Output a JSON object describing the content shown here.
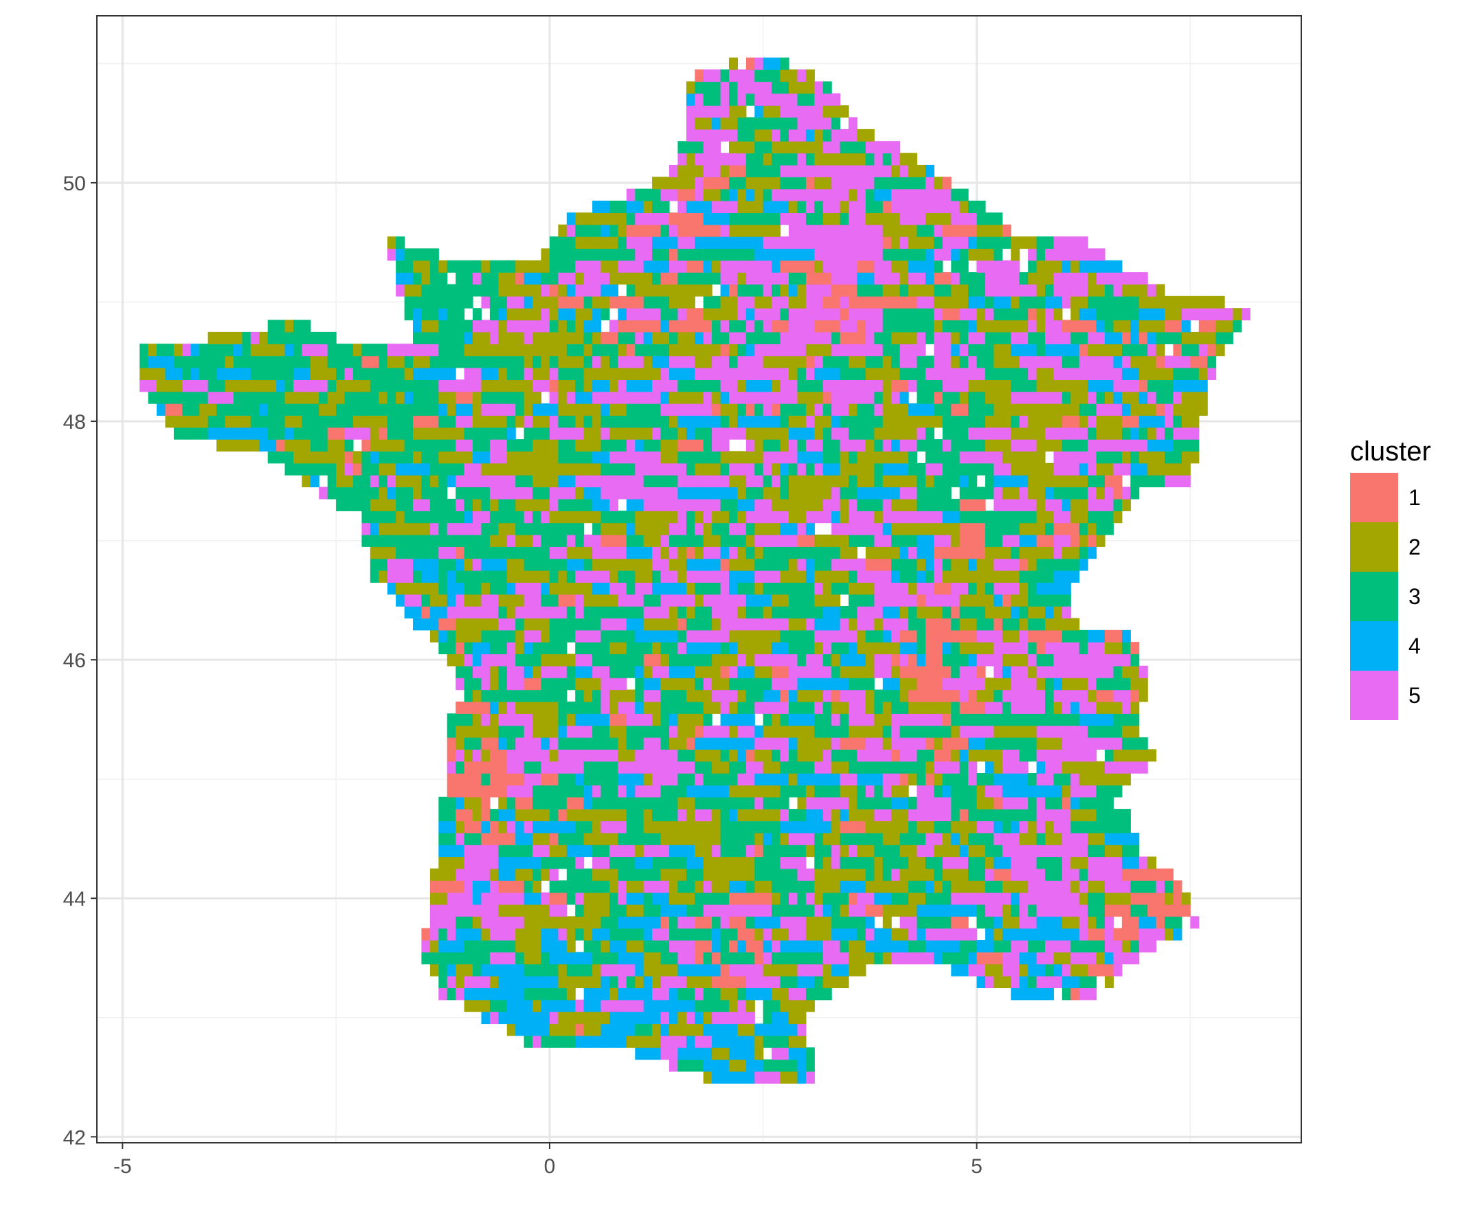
{
  "chart_data": {
    "type": "heatmap",
    "title": "",
    "xlabel": "",
    "ylabel": "",
    "xlim": [
      -5.3,
      8.8
    ],
    "ylim": [
      41.95,
      51.4
    ],
    "x_ticks": [
      -5,
      0,
      5
    ],
    "y_ticks": [
      42,
      44,
      46,
      48,
      50
    ],
    "x_tick_labels": [
      "-5",
      "0",
      "5"
    ],
    "y_tick_labels": [
      "42",
      "44",
      "46",
      "48",
      "50"
    ],
    "grid": true,
    "legend": {
      "title": "cluster",
      "placement": "right",
      "entries": [
        {
          "label": "1",
          "color": "#F8766D"
        },
        {
          "label": "2",
          "color": "#A3A500"
        },
        {
          "label": "3",
          "color": "#00BF7D"
        },
        {
          "label": "4",
          "color": "#00B0F6"
        },
        {
          "label": "5",
          "color": "#E76BF3"
        }
      ]
    },
    "cell_size_deg": 0.1,
    "region_outline": [
      [
        2.55,
        51.1
      ],
      [
        3.2,
        50.85
      ],
      [
        3.6,
        50.5
      ],
      [
        4.2,
        50.25
      ],
      [
        4.85,
        49.95
      ],
      [
        5.5,
        49.55
      ],
      [
        6.3,
        49.5
      ],
      [
        7.2,
        49.1
      ],
      [
        8.2,
        48.95
      ],
      [
        7.8,
        48.5
      ],
      [
        7.6,
        47.85
      ],
      [
        7.5,
        47.5
      ],
      [
        6.9,
        47.4
      ],
      [
        6.5,
        47.0
      ],
      [
        6.1,
        46.55
      ],
      [
        6.2,
        46.25
      ],
      [
        6.85,
        46.2
      ],
      [
        7.0,
        45.9
      ],
      [
        6.9,
        45.4
      ],
      [
        7.1,
        45.2
      ],
      [
        6.7,
        44.9
      ],
      [
        6.9,
        44.4
      ],
      [
        7.4,
        44.15
      ],
      [
        7.6,
        43.8
      ],
      [
        7.0,
        43.55
      ],
      [
        6.3,
        43.15
      ],
      [
        5.4,
        43.2
      ],
      [
        4.7,
        43.4
      ],
      [
        3.9,
        43.5
      ],
      [
        3.0,
        43.05
      ],
      [
        3.1,
        42.45
      ],
      [
        2.2,
        42.4
      ],
      [
        1.4,
        42.6
      ],
      [
        0.7,
        42.8
      ],
      [
        -0.3,
        42.8
      ],
      [
        -1.25,
        43.2
      ],
      [
        -1.5,
        43.5
      ],
      [
        -1.3,
        44.5
      ],
      [
        -1.2,
        45.3
      ],
      [
        -1.1,
        45.9
      ],
      [
        -1.55,
        46.3
      ],
      [
        -2.1,
        46.7
      ],
      [
        -2.2,
        47.2
      ],
      [
        -2.6,
        47.35
      ],
      [
        -3.4,
        47.75
      ],
      [
        -4.3,
        47.85
      ],
      [
        -4.75,
        48.3
      ],
      [
        -4.8,
        48.6
      ],
      [
        -4.0,
        48.7
      ],
      [
        -3.0,
        48.85
      ],
      [
        -2.2,
        48.6
      ],
      [
        -1.6,
        48.7
      ],
      [
        -1.95,
        49.55
      ],
      [
        -1.3,
        49.4
      ],
      [
        -0.2,
        49.3
      ],
      [
        0.2,
        49.7
      ],
      [
        1.35,
        50.05
      ],
      [
        1.6,
        50.4
      ],
      [
        1.65,
        50.9
      ],
      [
        2.55,
        51.1
      ]
    ],
    "hotspots": {
      "1": [
        [
          3.4,
          48.9
        ],
        [
          1.6,
          49.4
        ],
        [
          -0.9,
          44.9
        ],
        [
          2.0,
          43.7
        ],
        [
          4.6,
          45.9
        ],
        [
          6.9,
          43.9
        ],
        [
          7.2,
          48.6
        ]
      ],
      "5": [
        [
          3.2,
          48.7
        ],
        [
          5.9,
          44.1
        ],
        [
          5.7,
          45.6
        ],
        [
          -0.9,
          44.1
        ],
        [
          1.4,
          47.4
        ],
        [
          3.6,
          49.6
        ]
      ],
      "4": [
        [
          0.8,
          42.95
        ],
        [
          2.3,
          42.75
        ],
        [
          4.8,
          43.55
        ],
        [
          -0.6,
          43.15
        ]
      ],
      "2": [
        [
          1.6,
          44.4
        ],
        [
          0.0,
          43.5
        ],
        [
          2.6,
          46.7
        ],
        [
          5.7,
          47.6
        ],
        [
          -0.3,
          48.8
        ]
      ],
      "3": [
        [
          -3.5,
          48.2
        ],
        [
          -1.4,
          47.2
        ],
        [
          0.4,
          46.3
        ],
        [
          4.5,
          47.7
        ],
        [
          -2.1,
          48.5
        ]
      ]
    },
    "random_seed": 20240
  }
}
